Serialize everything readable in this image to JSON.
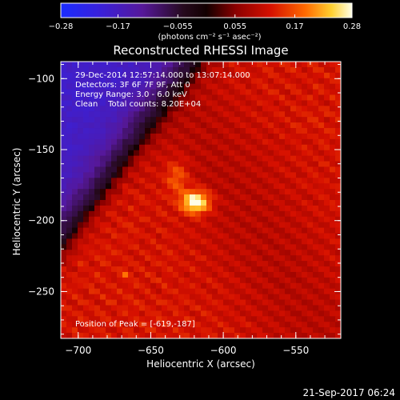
{
  "chart_data": {
    "type": "heatmap",
    "title": "Reconstructed RHESSI Image",
    "xlabel": "Heliocentric X (arcsec)",
    "ylabel": "Heliocentric Y (arcsec)",
    "xlim": [
      -712,
      -519
    ],
    "ylim": [
      -283,
      -88
    ],
    "x_ticks": [
      -700,
      -650,
      -600,
      -550
    ],
    "x_tick_labels": [
      "−700",
      "−650",
      "−600",
      "−550"
    ],
    "y_ticks": [
      -100,
      -150,
      -200,
      -250
    ],
    "y_tick_labels": [
      "−100",
      "−150",
      "−200",
      "−250"
    ],
    "colorbar": {
      "min": -0.28,
      "max": 0.28,
      "ticks": [
        -0.28,
        -0.17,
        -0.055,
        0.055,
        0.17,
        0.28
      ],
      "tick_labels": [
        "−0.28",
        "−0.17",
        "−0.055",
        "0.055",
        "0.17",
        "0.28"
      ],
      "units_label": "(photons cm⁻² s⁻¹ asec⁻²)"
    },
    "annotations": [
      "29-Dec-2014 12:57:14.000 to 13:07:14.000",
      "Detectors: 3F 6F 7F 9F, Att 0",
      "Energy Range: 3.0 - 6.0 keV",
      "Clean    Total counts: 8.20E+04"
    ],
    "peak_label": "Position of Peak = [-619,-187]",
    "peak": {
      "x": -619,
      "y": -187
    }
  },
  "footer_timestamp": "21-Sep-2017 06:24"
}
